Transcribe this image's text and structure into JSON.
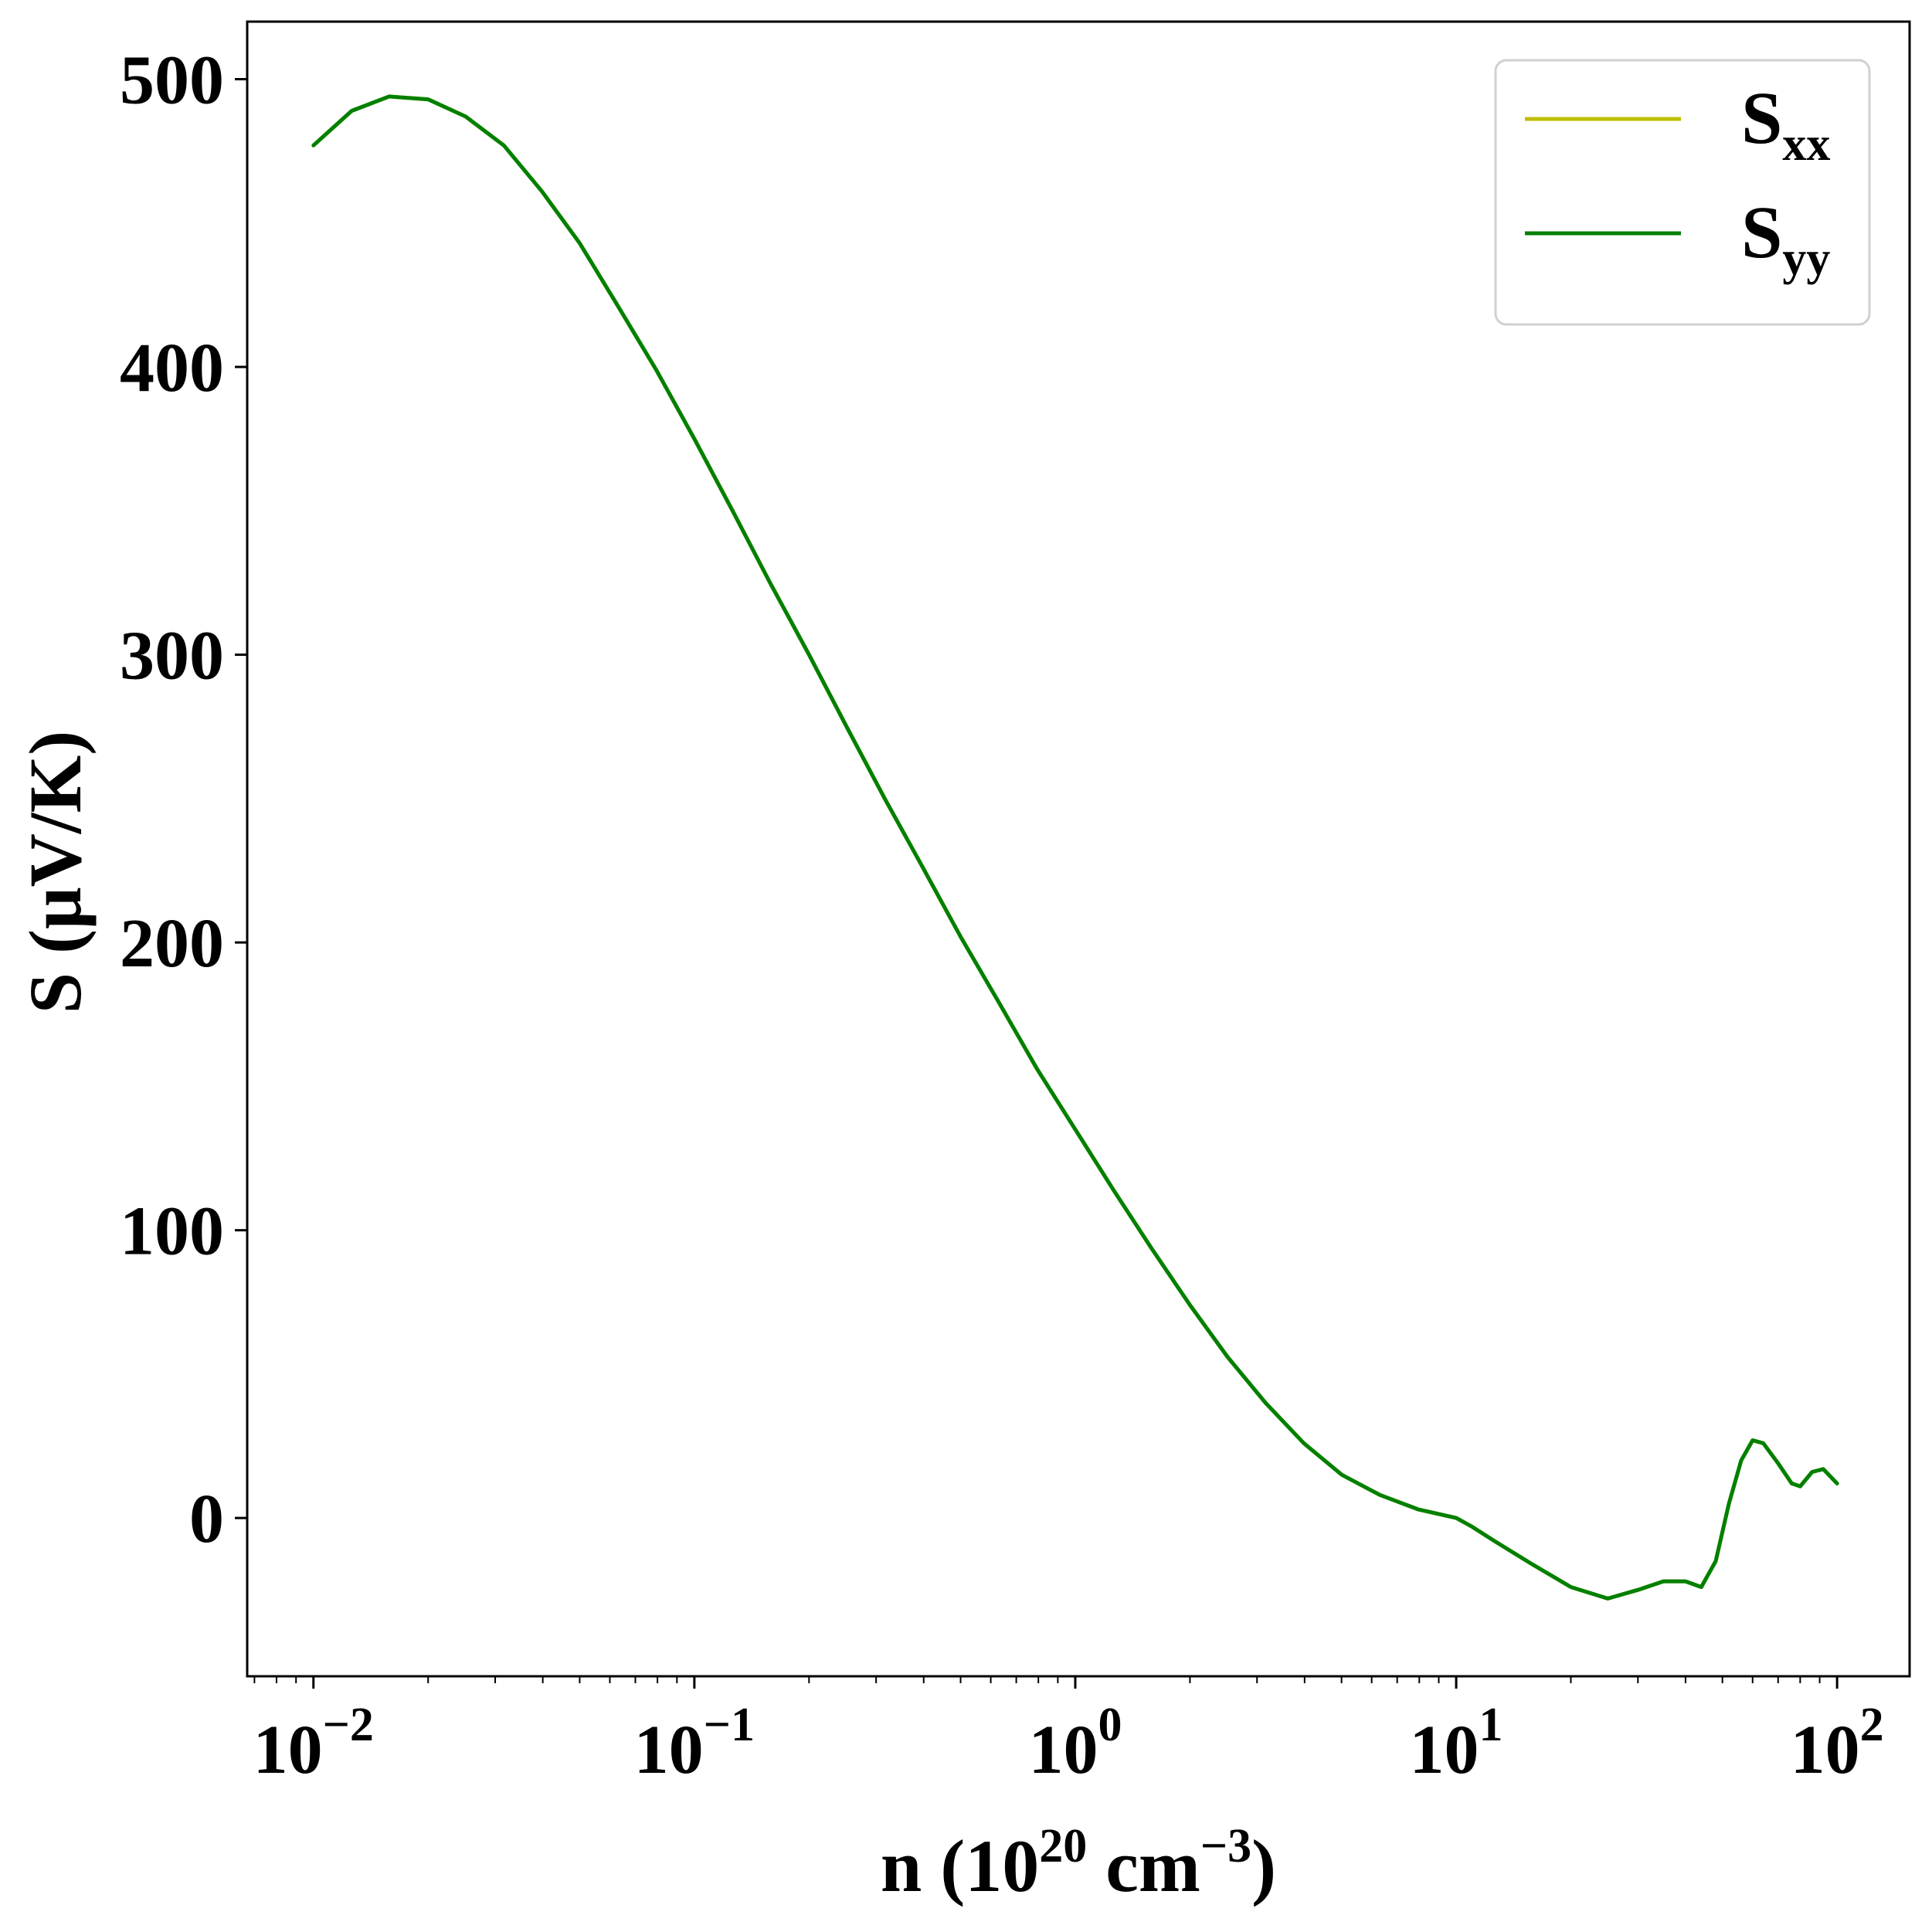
{
  "chart_data": {
    "type": "line",
    "xscale": "log",
    "xlim": [
      0.0067,
      155
    ],
    "ylim": [
      -55,
      520
    ],
    "xlabel": {
      "base": "n (10",
      "sup1": "20",
      "mid": " cm",
      "sup2": "−3",
      "end": ")"
    },
    "ylabel": "S (μV/K)",
    "x_ticks": [
      {
        "value": 0.01,
        "base": "10",
        "exp": "−2"
      },
      {
        "value": 0.1,
        "base": "10",
        "exp": "−1"
      },
      {
        "value": 1,
        "base": "10",
        "exp": "0"
      },
      {
        "value": 10,
        "base": "10",
        "exp": "1"
      },
      {
        "value": 100,
        "base": "10",
        "exp": "2"
      }
    ],
    "y_ticks": [
      0,
      100,
      200,
      300,
      400,
      500
    ],
    "y_tick_labels": [
      "0",
      "100",
      "200",
      "300",
      "400",
      "500"
    ],
    "grid": false,
    "legend": {
      "position": "top-right",
      "entries": [
        {
          "main": "S",
          "sub": "xx",
          "color": "#bfbf00"
        },
        {
          "main": "S",
          "sub": "yy",
          "color": "#008000"
        }
      ]
    },
    "series": [
      {
        "name": "Sxx",
        "color": "#bfbf00",
        "points": [
          [
            0.01,
            477
          ],
          [
            0.0126,
            489
          ],
          [
            0.0158,
            494
          ],
          [
            0.02,
            493
          ],
          [
            0.0251,
            487
          ],
          [
            0.0316,
            477
          ],
          [
            0.0398,
            461
          ],
          [
            0.05,
            443
          ],
          [
            0.0631,
            421
          ],
          [
            0.0794,
            399
          ],
          [
            0.1,
            375
          ],
          [
            0.126,
            350
          ],
          [
            0.158,
            325
          ],
          [
            0.2,
            300
          ],
          [
            0.251,
            275
          ],
          [
            0.316,
            250
          ],
          [
            0.398,
            226
          ],
          [
            0.5,
            202
          ],
          [
            0.631,
            179
          ],
          [
            0.794,
            156
          ],
          [
            1,
            135
          ],
          [
            1.26,
            114
          ],
          [
            1.58,
            94
          ],
          [
            2,
            74
          ],
          [
            2.51,
            56
          ],
          [
            3.16,
            40
          ],
          [
            3.98,
            26
          ],
          [
            5.01,
            15
          ],
          [
            6.31,
            8
          ],
          [
            7.94,
            3
          ],
          [
            10,
            0
          ],
          [
            11,
            -3
          ],
          [
            12.6,
            -8
          ],
          [
            15.8,
            -16
          ],
          [
            20,
            -24
          ],
          [
            25,
            -28
          ],
          [
            30,
            -25
          ],
          [
            35,
            -22
          ],
          [
            40,
            -22
          ],
          [
            44,
            -24
          ],
          [
            48,
            -15
          ],
          [
            52,
            5
          ],
          [
            56,
            20
          ],
          [
            60,
            27
          ],
          [
            64,
            26
          ],
          [
            70,
            19
          ],
          [
            76,
            12
          ],
          [
            80,
            11
          ],
          [
            86,
            16
          ],
          [
            92,
            17
          ],
          [
            100,
            12
          ]
        ]
      },
      {
        "name": "Syy",
        "color": "#008000",
        "points": [
          [
            0.01,
            477
          ],
          [
            0.0126,
            489
          ],
          [
            0.0158,
            494
          ],
          [
            0.02,
            493
          ],
          [
            0.0251,
            487
          ],
          [
            0.0316,
            477
          ],
          [
            0.0398,
            461
          ],
          [
            0.05,
            443
          ],
          [
            0.0631,
            421
          ],
          [
            0.0794,
            399
          ],
          [
            0.1,
            375
          ],
          [
            0.126,
            350
          ],
          [
            0.158,
            325
          ],
          [
            0.2,
            300
          ],
          [
            0.251,
            275
          ],
          [
            0.316,
            250
          ],
          [
            0.398,
            226
          ],
          [
            0.5,
            202
          ],
          [
            0.631,
            179
          ],
          [
            0.794,
            156
          ],
          [
            1,
            135
          ],
          [
            1.26,
            114
          ],
          [
            1.58,
            94
          ],
          [
            2,
            74
          ],
          [
            2.51,
            56
          ],
          [
            3.16,
            40
          ],
          [
            3.98,
            26
          ],
          [
            5.01,
            15
          ],
          [
            6.31,
            8
          ],
          [
            7.94,
            3
          ],
          [
            10,
            0
          ],
          [
            11,
            -3
          ],
          [
            12.6,
            -8
          ],
          [
            15.8,
            -16
          ],
          [
            20,
            -24
          ],
          [
            25,
            -28
          ],
          [
            30,
            -25
          ],
          [
            35,
            -22
          ],
          [
            40,
            -22
          ],
          [
            44,
            -24
          ],
          [
            48,
            -15
          ],
          [
            52,
            5
          ],
          [
            56,
            20
          ],
          [
            60,
            27
          ],
          [
            64,
            26
          ],
          [
            70,
            19
          ],
          [
            76,
            12
          ],
          [
            80,
            11
          ],
          [
            86,
            16
          ],
          [
            92,
            17
          ],
          [
            100,
            12
          ]
        ]
      }
    ]
  }
}
